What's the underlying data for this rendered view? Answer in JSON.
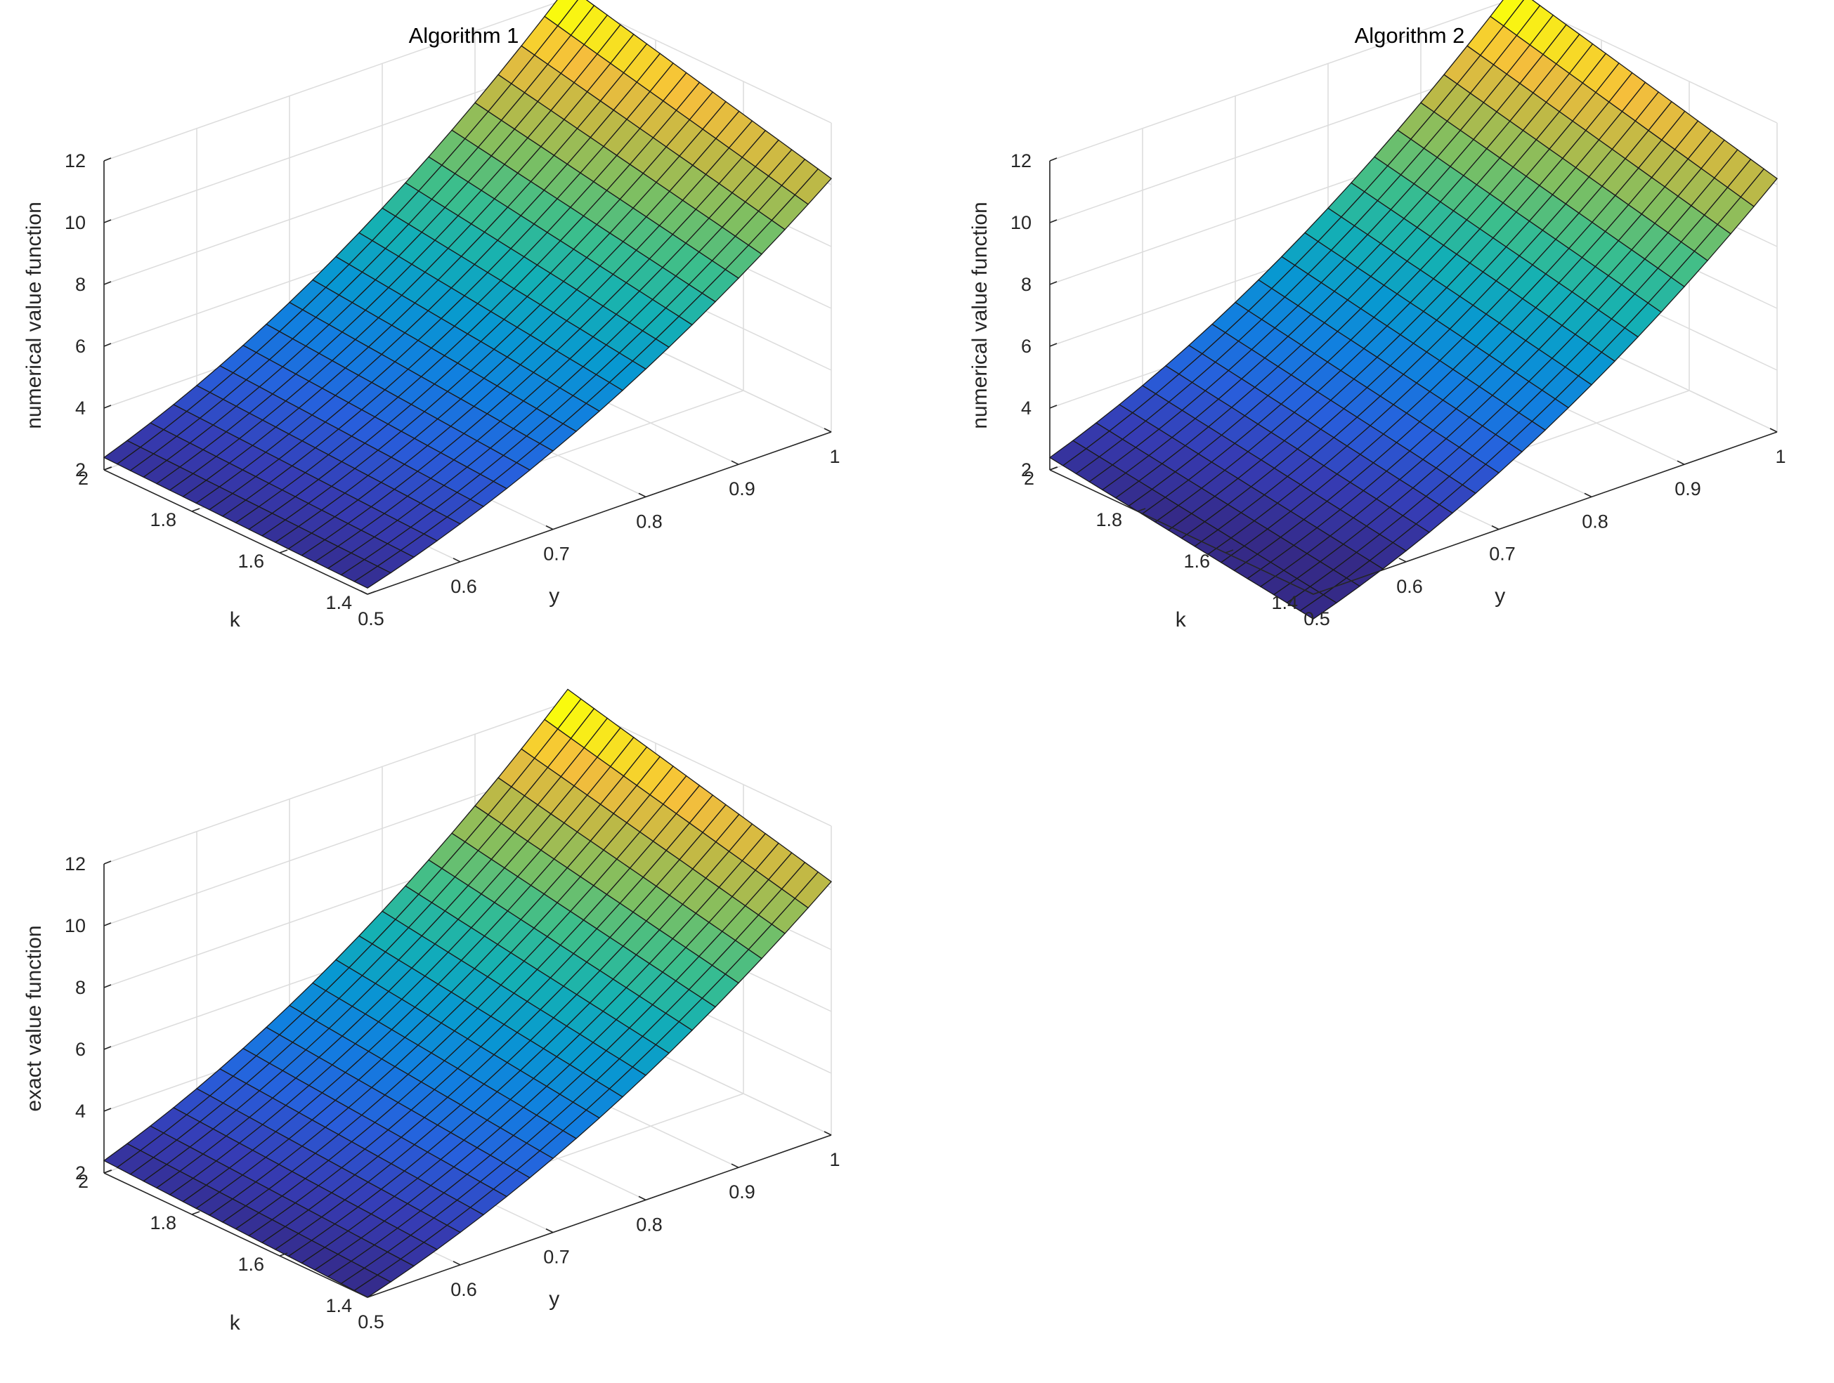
{
  "chart_data": [
    {
      "type": "surface",
      "title": "Algorithm 1",
      "xlabel": "k",
      "ylabel": "y",
      "zlabel": "numerical value function",
      "k_ticks": [
        "1.4",
        "1.6",
        "1.8",
        "2"
      ],
      "y_ticks": [
        "0.5",
        "0.6",
        "0.7",
        "0.8",
        "0.9",
        "1"
      ],
      "z_ticks": [
        "2",
        "4",
        "6",
        "8",
        "10",
        "12"
      ],
      "k_range": [
        1.4,
        2.0
      ],
      "y_range": [
        0.5,
        1.0
      ],
      "zlim": [
        2,
        12
      ],
      "grid": true,
      "colormap": "parula",
      "k_mesh": 21,
      "y_mesh": 21,
      "corner_values": {
        "k1.4_y0.5": 2.2,
        "k2_y0.5": 2.4,
        "k1.4_y1": 10.2,
        "k2_y1": 12.4
      }
    },
    {
      "type": "surface",
      "title": "Algorithm 2",
      "xlabel": "k",
      "ylabel": "y",
      "zlabel": "numerical value function",
      "k_ticks": [
        "1.4",
        "1.6",
        "1.8",
        "2"
      ],
      "y_ticks": [
        "0.5",
        "0.6",
        "0.7",
        "0.8",
        "0.9",
        "1"
      ],
      "z_ticks": [
        "2",
        "4",
        "6",
        "8",
        "10",
        "12"
      ],
      "k_range": [
        1.4,
        2.0
      ],
      "y_range": [
        0.5,
        1.0
      ],
      "zlim": [
        2,
        12
      ],
      "grid": true,
      "colormap": "parula",
      "k_mesh": 21,
      "y_mesh": 21,
      "corner_values": {
        "k1.4_y0.5": 1.2,
        "k2_y0.5": 2.4,
        "k1.4_y1": 10.2,
        "k2_y1": 12.4
      }
    },
    {
      "type": "surface",
      "title": "",
      "xlabel": "k",
      "ylabel": "y",
      "zlabel": "exact value function",
      "k_ticks": [
        "1.4",
        "1.6",
        "1.8",
        "2"
      ],
      "y_ticks": [
        "0.5",
        "0.6",
        "0.7",
        "0.8",
        "0.9",
        "1"
      ],
      "z_ticks": [
        "2",
        "4",
        "6",
        "8",
        "10",
        "12"
      ],
      "k_range": [
        1.4,
        2.0
      ],
      "y_range": [
        0.5,
        1.0
      ],
      "zlim": [
        2,
        12
      ],
      "grid": true,
      "colormap": "parula",
      "k_mesh": 21,
      "y_mesh": 21,
      "corner_values": {
        "k1.4_y0.5": 2.0,
        "k2_y0.5": 2.4,
        "k1.4_y1": 10.2,
        "k2_y1": 12.4
      }
    }
  ]
}
